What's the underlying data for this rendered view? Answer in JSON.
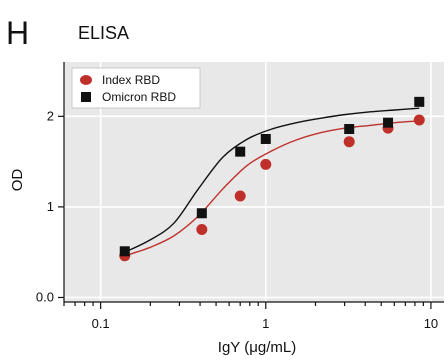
{
  "chart_data": {
    "type": "scatter",
    "panel_letter": "H",
    "title": "ELISA",
    "xlabel": "IgY (μg/mL)",
    "ylabel": "OD",
    "xscale": "log",
    "xlim": [
      0.06,
      12
    ],
    "ylim": [
      -0.05,
      2.6
    ],
    "xticks": [
      {
        "value": 0.1,
        "label": "0.1"
      },
      {
        "value": 1,
        "label": "1"
      },
      {
        "value": 10,
        "label": "10"
      }
    ],
    "yticks": [
      {
        "value": 0,
        "label": "0.0"
      },
      {
        "value": 1,
        "label": "1"
      },
      {
        "value": 2,
        "label": "2"
      }
    ],
    "grid": true,
    "legend_position": "top-left",
    "series": [
      {
        "name": "Index RBD",
        "marker": "circle",
        "color": "#c0302b",
        "x": [
          0.14,
          0.41,
          0.7,
          1.0,
          3.2,
          5.5,
          8.5
        ],
        "y": [
          0.46,
          0.75,
          1.12,
          1.47,
          1.72,
          1.87,
          1.96
        ],
        "fit": [
          0.46,
          0.55,
          0.68,
          0.9,
          1.2,
          1.46,
          1.62,
          1.74,
          1.82,
          1.87,
          1.9,
          1.93,
          1.95
        ]
      },
      {
        "name": "Omicron RBD",
        "marker": "square",
        "color": "#111111",
        "x": [
          0.14,
          0.41,
          0.7,
          1.0,
          3.2,
          5.5,
          8.5
        ],
        "y": [
          0.51,
          0.93,
          1.61,
          1.75,
          1.86,
          1.93,
          2.16
        ],
        "fit": [
          0.5,
          0.63,
          0.82,
          1.2,
          1.55,
          1.75,
          1.86,
          1.93,
          1.98,
          2.02,
          2.05,
          2.07,
          2.09
        ]
      }
    ]
  }
}
